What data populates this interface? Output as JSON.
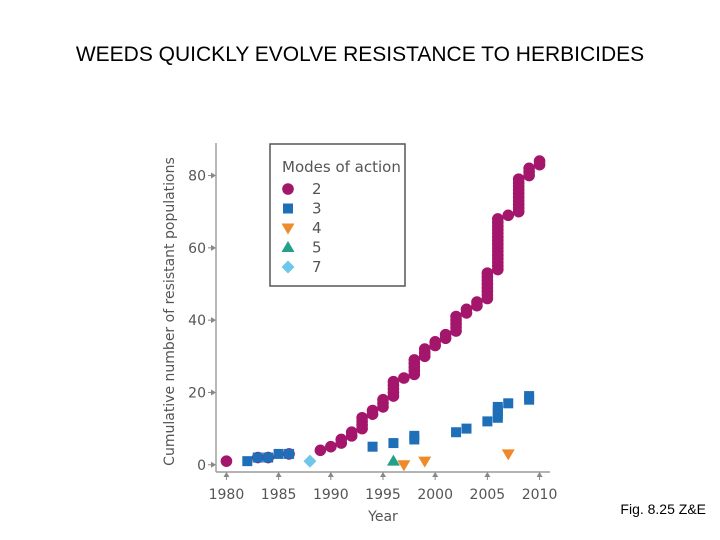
{
  "slide": {
    "title": "WEEDS QUICKLY EVOLVE RESISTANCE TO HERBICIDES",
    "caption": "Fig. 8.25 Z&E"
  },
  "colors": {
    "mode2": "#a3166b",
    "mode3": "#1f6fb8",
    "mode4": "#ee8a2a",
    "mode5": "#22a08a",
    "mode7": "#6ec6ea",
    "axis": "#888888",
    "legend_border": "#555555"
  },
  "chart_data": {
    "type": "scatter",
    "title": "",
    "xlabel": "Year",
    "ylabel": "Cumulative number of resistant populations",
    "xlim": [
      1979,
      2011
    ],
    "ylim": [
      -2,
      89
    ],
    "xticks": [
      1980,
      1985,
      1990,
      1995,
      2000,
      2005,
      2010
    ],
    "yticks": [
      0,
      20,
      40,
      60,
      80
    ],
    "legend": {
      "title": "Modes of action",
      "placement": "top-left"
    },
    "series": [
      {
        "name": "2",
        "marker": "circle",
        "color": "#a3166b",
        "points": [
          [
            1980,
            1
          ],
          [
            1983,
            2
          ],
          [
            1984,
            2
          ],
          [
            1986,
            3
          ],
          [
            1989,
            4
          ],
          [
            1990,
            5
          ],
          [
            1991,
            6
          ],
          [
            1991,
            7
          ],
          [
            1992,
            8
          ],
          [
            1992,
            9
          ],
          [
            1993,
            10
          ],
          [
            1993,
            11
          ],
          [
            1993,
            12
          ],
          [
            1993,
            13
          ],
          [
            1994,
            14
          ],
          [
            1994,
            15
          ],
          [
            1995,
            16
          ],
          [
            1995,
            17
          ],
          [
            1995,
            18
          ],
          [
            1996,
            19
          ],
          [
            1996,
            20
          ],
          [
            1996,
            21
          ],
          [
            1996,
            22
          ],
          [
            1996,
            23
          ],
          [
            1997,
            24
          ],
          [
            1998,
            25
          ],
          [
            1998,
            26
          ],
          [
            1998,
            27
          ],
          [
            1998,
            28
          ],
          [
            1998,
            29
          ],
          [
            1999,
            30
          ],
          [
            1999,
            31
          ],
          [
            1999,
            32
          ],
          [
            2000,
            33
          ],
          [
            2000,
            34
          ],
          [
            2001,
            35
          ],
          [
            2001,
            36
          ],
          [
            2002,
            37
          ],
          [
            2002,
            38
          ],
          [
            2002,
            39
          ],
          [
            2002,
            40
          ],
          [
            2002,
            41
          ],
          [
            2003,
            42
          ],
          [
            2003,
            43
          ],
          [
            2004,
            44
          ],
          [
            2004,
            45
          ],
          [
            2005,
            46
          ],
          [
            2005,
            47
          ],
          [
            2005,
            48
          ],
          [
            2005,
            49
          ],
          [
            2005,
            50
          ],
          [
            2005,
            51
          ],
          [
            2005,
            52
          ],
          [
            2005,
            53
          ],
          [
            2006,
            54
          ],
          [
            2006,
            55
          ],
          [
            2006,
            56
          ],
          [
            2006,
            57
          ],
          [
            2006,
            58
          ],
          [
            2006,
            59
          ],
          [
            2006,
            60
          ],
          [
            2006,
            61
          ],
          [
            2006,
            62
          ],
          [
            2006,
            63
          ],
          [
            2006,
            64
          ],
          [
            2006,
            65
          ],
          [
            2006,
            66
          ],
          [
            2006,
            67
          ],
          [
            2006,
            68
          ],
          [
            2007,
            69
          ],
          [
            2008,
            70
          ],
          [
            2008,
            71
          ],
          [
            2008,
            72
          ],
          [
            2008,
            73
          ],
          [
            2008,
            74
          ],
          [
            2008,
            75
          ],
          [
            2008,
            76
          ],
          [
            2008,
            77
          ],
          [
            2008,
            78
          ],
          [
            2008,
            79
          ],
          [
            2009,
            80
          ],
          [
            2009,
            81
          ],
          [
            2009,
            82
          ],
          [
            2010,
            83
          ],
          [
            2010,
            84
          ]
        ]
      },
      {
        "name": "3",
        "marker": "square",
        "color": "#1f6fb8",
        "points": [
          [
            1982,
            1
          ],
          [
            1983,
            2
          ],
          [
            1984,
            2
          ],
          [
            1985,
            3
          ],
          [
            1986,
            3
          ],
          [
            1994,
            5
          ],
          [
            1996,
            6
          ],
          [
            1998,
            7
          ],
          [
            1998,
            8
          ],
          [
            2002,
            9
          ],
          [
            2003,
            10
          ],
          [
            2005,
            12
          ],
          [
            2006,
            13
          ],
          [
            2006,
            14
          ],
          [
            2006,
            15
          ],
          [
            2006,
            16
          ],
          [
            2007,
            17
          ],
          [
            2009,
            18
          ],
          [
            2009,
            19
          ]
        ]
      },
      {
        "name": "4",
        "marker": "triangle-down",
        "color": "#ee8a2a",
        "points": [
          [
            1997,
            0
          ],
          [
            1999,
            1
          ],
          [
            2007,
            3
          ]
        ]
      },
      {
        "name": "5",
        "marker": "triangle-up",
        "color": "#22a08a",
        "points": [
          [
            1996,
            1
          ]
        ]
      },
      {
        "name": "7",
        "marker": "diamond",
        "color": "#6ec6ea",
        "points": [
          [
            1988,
            1
          ]
        ]
      }
    ]
  }
}
